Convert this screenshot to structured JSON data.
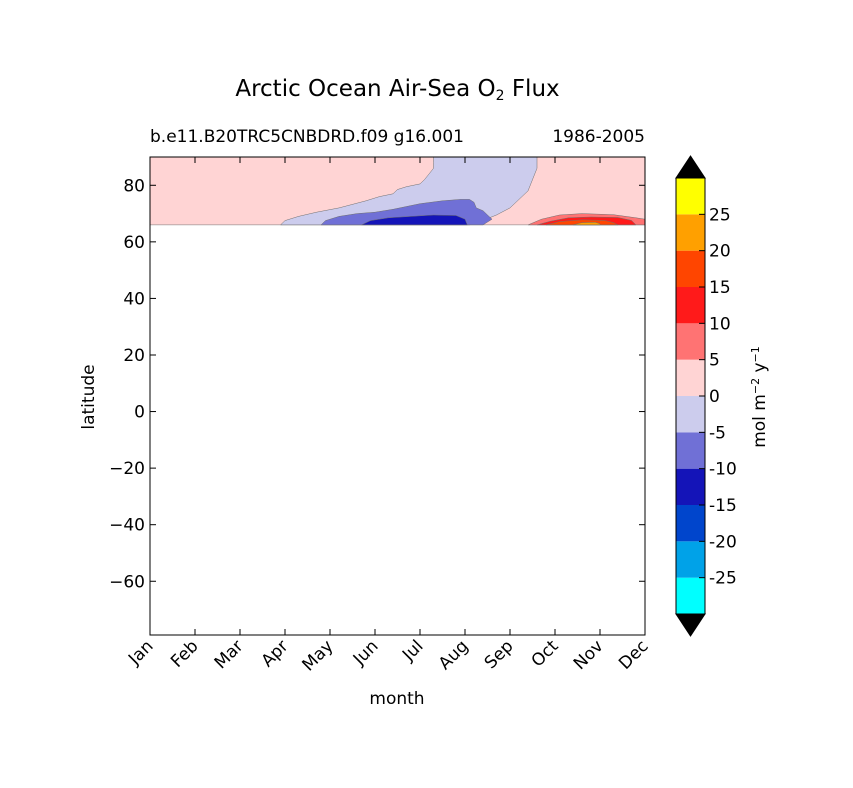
{
  "chart_data": {
    "type": "contour",
    "title": "Arctic Ocean Air-Sea O",
    "title_subscript": "2",
    "title_suffix": "Flux",
    "subtitle_left": "b.e11.B20TRC5CNBDRD.f09 g16.001",
    "subtitle_right": "1986-2005",
    "xlabel": "month",
    "ylabel": "latitude",
    "x_categories": [
      "Jan",
      "Feb",
      "Mar",
      "Apr",
      "May",
      "Jun",
      "Jul",
      "Aug",
      "Sep",
      "Oct",
      "Nov",
      "Dec"
    ],
    "xlim": [
      0,
      11
    ],
    "ylim": [
      -79,
      90
    ],
    "y_ticks": [
      -60,
      -40,
      -20,
      0,
      20,
      40,
      60,
      80
    ],
    "y_tick_labels": [
      "−60",
      "−40",
      "−20",
      "0",
      "20",
      "40",
      "60",
      "80"
    ],
    "data_lat_min": 66,
    "colorbar": {
      "label": "mol m",
      "label_sup1": "−2",
      "label_mid": "y",
      "label_sup2": "−1",
      "levels": [
        -30,
        -25,
        -20,
        -15,
        -10,
        -5,
        0,
        5,
        10,
        15,
        20,
        25,
        30
      ],
      "tick_values": [
        -25,
        -20,
        -15,
        -10,
        -5,
        0,
        5,
        10,
        15,
        20,
        25
      ],
      "tick_labels": [
        "-25",
        "-20",
        "-15",
        "-10",
        "-5",
        "0",
        "5",
        "10",
        "15",
        "20",
        "25"
      ],
      "colors": [
        "#00ffff",
        "#00a2e8",
        "#0045cc",
        "#1414b8",
        "#7070d6",
        "#cccced",
        "#ffd4d4",
        "#ff7373",
        "#ff1a1a",
        "#ff4500",
        "#ffa000",
        "#ffff00"
      ],
      "extend": "both",
      "extend_color": "#000000"
    },
    "regions": [
      {
        "level": "0 to 5",
        "color": "#ffd4d4",
        "outline": [
          [
            0,
            90
          ],
          [
            11,
            90
          ],
          [
            11,
            66
          ],
          [
            0,
            66
          ]
        ]
      },
      {
        "level": "-5 to 0",
        "color": "#cccced",
        "outline": [
          [
            2.9,
            66
          ],
          [
            3.0,
            67.5
          ],
          [
            3.3,
            69
          ],
          [
            3.7,
            70.5
          ],
          [
            4.2,
            72
          ],
          [
            4.8,
            74.5
          ],
          [
            5.1,
            76
          ],
          [
            5.4,
            77
          ],
          [
            5.5,
            78.5
          ],
          [
            5.7,
            79.5
          ],
          [
            6.0,
            80.5
          ],
          [
            6.1,
            82
          ],
          [
            6.2,
            84
          ],
          [
            6.3,
            86
          ],
          [
            6.3,
            88
          ],
          [
            6.3,
            90
          ],
          [
            8.6,
            90
          ],
          [
            8.6,
            86
          ],
          [
            8.5,
            82
          ],
          [
            8.4,
            78
          ],
          [
            8.2,
            75
          ],
          [
            8.0,
            72
          ],
          [
            7.7,
            69.5
          ],
          [
            7.3,
            67
          ],
          [
            7.1,
            66
          ]
        ]
      },
      {
        "level": "-10 to -5",
        "color": "#7070d6",
        "outline": [
          [
            3.8,
            66
          ],
          [
            3.9,
            67.5
          ],
          [
            4.2,
            69
          ],
          [
            4.6,
            70
          ],
          [
            5.0,
            70.5
          ],
          [
            5.4,
            71.5
          ],
          [
            6.0,
            73.5
          ],
          [
            6.5,
            74.5
          ],
          [
            6.9,
            75
          ],
          [
            7.1,
            75
          ],
          [
            7.2,
            74
          ],
          [
            7.25,
            72
          ],
          [
            7.4,
            71
          ],
          [
            7.5,
            69.5
          ],
          [
            7.6,
            68
          ],
          [
            7.4,
            66
          ]
        ]
      },
      {
        "level": "-15 to -10",
        "color": "#1414b8",
        "outline": [
          [
            4.7,
            66
          ],
          [
            4.9,
            67.5
          ],
          [
            5.3,
            68.5
          ],
          [
            5.8,
            69
          ],
          [
            6.3,
            69.5
          ],
          [
            6.8,
            69.3
          ],
          [
            7.0,
            68
          ],
          [
            7.05,
            66
          ]
        ]
      },
      {
        "level": "5 to 10",
        "color": "#ff7373",
        "outline": [
          [
            8.4,
            66
          ],
          [
            8.7,
            68
          ],
          [
            9.1,
            69.5
          ],
          [
            9.6,
            70
          ],
          [
            10.3,
            69.6
          ],
          [
            10.8,
            68.5
          ],
          [
            11.0,
            68
          ],
          [
            11.0,
            66
          ]
        ]
      },
      {
        "level": "10 to 15",
        "color": "#ff1a1a",
        "outline": [
          [
            8.6,
            66
          ],
          [
            8.9,
            67.3
          ],
          [
            9.3,
            68.5
          ],
          [
            9.8,
            68.8
          ],
          [
            10.4,
            68.6
          ],
          [
            10.7,
            67.6
          ],
          [
            10.8,
            66
          ]
        ]
      },
      {
        "level": "15 to 20",
        "color": "#ff4500",
        "outline": [
          [
            8.8,
            66
          ],
          [
            9.1,
            67.2
          ],
          [
            9.6,
            67.8
          ],
          [
            10.1,
            67.6
          ],
          [
            10.3,
            66.8
          ],
          [
            10.4,
            66
          ]
        ]
      },
      {
        "level": "20 to 25",
        "color": "#ffa000",
        "outline": [
          [
            9.4,
            66
          ],
          [
            9.6,
            66.8
          ],
          [
            9.9,
            66.9
          ],
          [
            10.0,
            66.4
          ],
          [
            10.0,
            66
          ]
        ]
      }
    ]
  }
}
